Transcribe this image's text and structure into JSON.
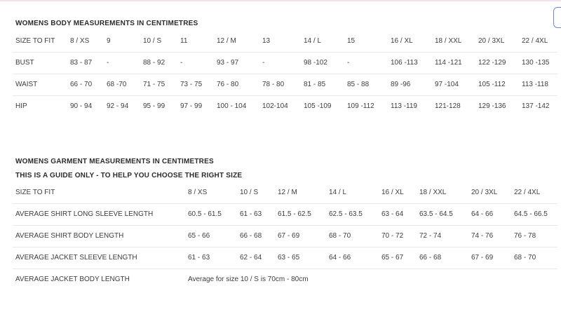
{
  "body_table": {
    "title": "WOMENS BODY MEASUREMENTS IN CENTIMETRES",
    "rows": [
      {
        "label": "SIZE TO FIT",
        "values": [
          "8 / XS",
          "9",
          "10 / S",
          "11",
          "12 / M",
          "13",
          "14 / L",
          "15",
          "16 / XL",
          "18 / XXL",
          "20 / 3XL",
          "22 / 4XL"
        ]
      },
      {
        "label": "BUST",
        "values": [
          "83 - 87",
          "-",
          "88 - 92",
          "-",
          "93 - 97",
          "-",
          "98 -102",
          "-",
          "106 -113",
          "114 -121",
          "122 -129",
          "130 -135"
        ]
      },
      {
        "label": "WAIST",
        "values": [
          "66 - 70",
          "68 -70",
          "71 - 75",
          "73 - 75",
          "76 - 80",
          "78 - 80",
          "81 - 85",
          "85 - 88",
          "89 -96",
          "97 -104",
          "105 -112",
          "113 -118"
        ]
      },
      {
        "label": "HIP",
        "values": [
          "90 - 94",
          "92 - 94",
          "95 - 99",
          "97 - 99",
          "100 - 104",
          "102-104",
          "105 -109",
          "109 -112",
          "113 -119",
          "121-128",
          "129 -136",
          "137 -142"
        ]
      }
    ]
  },
  "garment_table": {
    "title": "WOMENS GARMENT MEASUREMENTS IN CENTIMETRES",
    "subtitle": "THIS IS A GUIDE ONLY - TO HELP YOU CHOOSE THE RIGHT SIZE",
    "rows": [
      {
        "label": "SIZE TO FIT",
        "values": [
          "8 / XS",
          "10 / S",
          "12 / M",
          "14 / L",
          "16 / XL",
          "18 / XXL",
          "20 / 3XL",
          "22 / 4XL"
        ]
      },
      {
        "label": "AVERAGE SHIRT LONG SLEEVE LENGTH",
        "values": [
          "60.5 - 61.5",
          "61 - 63",
          "61.5 - 62.5",
          "62.5 - 63.5",
          "63 - 64",
          "63.5 - 64.5",
          "64 - 66",
          "64.5 - 66.5"
        ]
      },
      {
        "label": "AVERAGE SHIRT BODY LENGTH",
        "values": [
          "65 - 66",
          "66 - 68",
          "67 - 69",
          "68 - 70",
          "70 - 72",
          "72 - 74",
          "74 - 76",
          "76 - 78"
        ]
      },
      {
        "label": "AVERAGE JACKET SLEEVE LENGTH",
        "values": [
          "61 - 63",
          "62 - 64",
          "63 - 65",
          "64 - 66",
          "65 - 67",
          "66 - 68",
          "67 - 69",
          "68 - 70"
        ]
      },
      {
        "label": "AVERAGE JACKET BODY LENGTH",
        "values": [
          "Average for size 10 / S is 70cm - 80cm"
        ]
      }
    ]
  }
}
